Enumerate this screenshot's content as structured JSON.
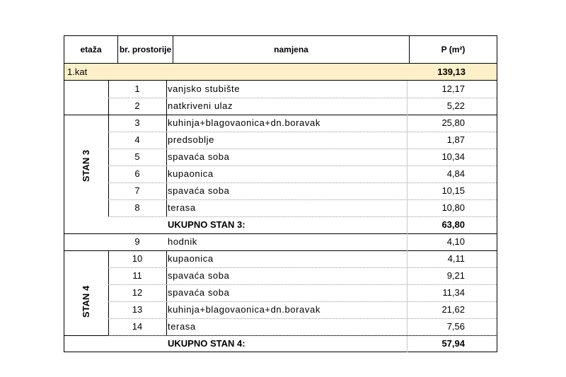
{
  "header": {
    "etaza": "etaža",
    "br_prostorije": "br. prostorije",
    "namjena": "namjena",
    "povrsina": "P (m²)"
  },
  "kat": {
    "label": "1.kat",
    "value": "139,13"
  },
  "rows": [
    {
      "num": "1",
      "name": "vanjsko stubište",
      "area": "12,17"
    },
    {
      "num": "2",
      "name": "natkriveni ulaz",
      "area": "5,22"
    },
    {
      "num": "3",
      "name": "kuhinja+blagovaonica+dn.boravak",
      "area": "25,80"
    },
    {
      "num": "4",
      "name": "predsoblje",
      "area": "1,87"
    },
    {
      "num": "5",
      "name": "spavaća soba",
      "area": "10,34"
    },
    {
      "num": "6",
      "name": "kupaonica",
      "area": "4,84"
    },
    {
      "num": "7",
      "name": "spavaća soba",
      "area": "10,15"
    },
    {
      "num": "8",
      "name": "terasa",
      "area": "10,80"
    },
    {
      "num": "9",
      "name": "hodnik",
      "area": "4,10"
    },
    {
      "num": "10",
      "name": "kupaonica",
      "area": "4,11"
    },
    {
      "num": "11",
      "name": "spavaća soba",
      "area": "9,21"
    },
    {
      "num": "12",
      "name": "spavaća soba",
      "area": "11,34"
    },
    {
      "num": "13",
      "name": "kuhinja+blagovaonica+dn.boravak",
      "area": "21,62"
    },
    {
      "num": "14",
      "name": "terasa",
      "area": "7,56"
    }
  ],
  "stan3": {
    "label": "STAN 3",
    "total_label": "UKUPNO STAN 3:",
    "total_value": "63,80"
  },
  "stan4": {
    "label": "STAN 4",
    "total_label": "UKUPNO STAN 4:",
    "total_value": "57,94"
  }
}
